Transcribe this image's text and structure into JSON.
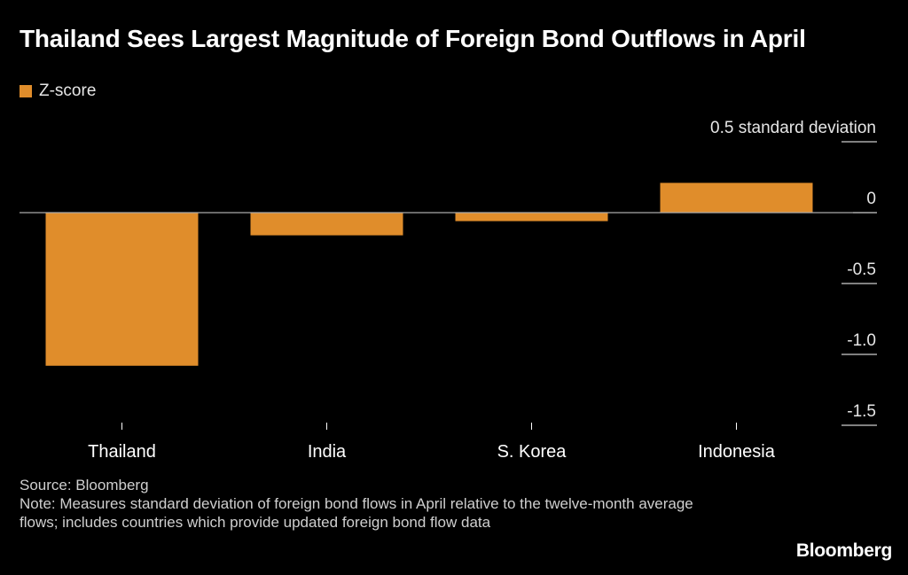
{
  "chart_title": "Thailand Sees Largest Magnitude of Foreign Bond Outflows in April",
  "legend": {
    "label": "Z-score"
  },
  "colors": {
    "bar": "#E08D2B",
    "background": "#000000",
    "text": "#FFFFFF",
    "axis": "#FFFFFF",
    "zero_line": "#AAAAAA"
  },
  "chart_data": {
    "type": "bar",
    "title": "Thailand Sees Largest Magnitude of Foreign Bond Outflows in April",
    "categories": [
      "Thailand",
      "India",
      "S. Korea",
      "Indonesia"
    ],
    "series": [
      {
        "name": "Z-score",
        "values": [
          -1.08,
          -0.16,
          -0.06,
          0.21
        ]
      }
    ],
    "ylabel": "0.5 standard deviation",
    "ylim": [
      -1.5,
      0.5
    ],
    "yticks": [
      {
        "value": 0.5,
        "label": "0.5 standard deviation"
      },
      {
        "value": 0,
        "label": "0"
      },
      {
        "value": -0.5,
        "label": "-0.5"
      },
      {
        "value": -1.0,
        "label": "-1.0"
      },
      {
        "value": -1.5,
        "label": "-1.5"
      }
    ],
    "legend_position": "top-left",
    "grid": false
  },
  "source": "Source: Bloomberg",
  "note": "Note: Measures standard deviation of foreign bond flows in April relative to the twelve-month average flows; includes countries which provide updated foreign bond flow data",
  "brand": "Bloomberg"
}
